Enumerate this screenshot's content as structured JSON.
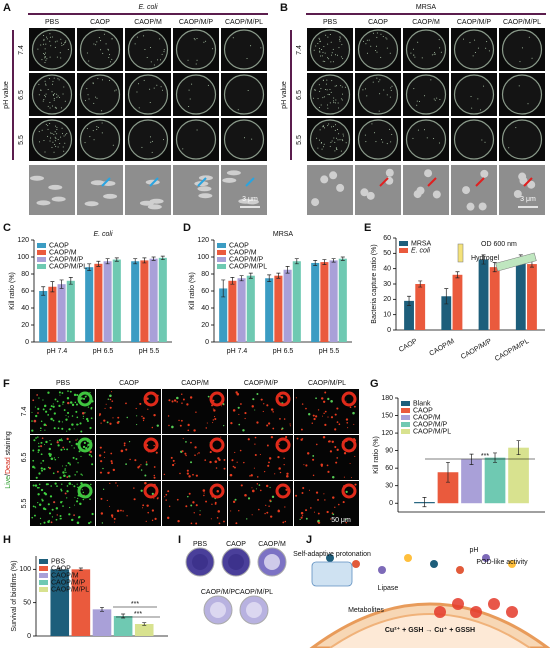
{
  "panel_labels": [
    "A",
    "B",
    "C",
    "D",
    "E",
    "F",
    "G",
    "H",
    "I",
    "J"
  ],
  "panel_a": {
    "title": "E. coli",
    "columns": [
      "PBS",
      "CAOP",
      "CAOP/M",
      "CAOP/M/P",
      "CAOP/M/PL"
    ],
    "rows": [
      "7.4",
      "6.5",
      "5.5"
    ],
    "row_axis": "pH value",
    "scale_bar": "3 μm"
  },
  "panel_b": {
    "title": "MRSA",
    "columns": [
      "PBS",
      "CAOP",
      "CAOP/M",
      "CAOP/M/P",
      "CAOP/M/PL"
    ],
    "rows": [
      "7.4",
      "6.5",
      "5.5"
    ],
    "row_axis": "pH value",
    "scale_bar": "3 μm"
  },
  "chart_data": [
    {
      "type": "bar",
      "title": "E. coli",
      "y_label": "Kill ratio (%)",
      "categories": [
        "pH 7.4",
        "pH 6.5",
        "pH 5.5"
      ],
      "ylim": [
        0,
        120
      ],
      "yticks": [
        0,
        20,
        40,
        60,
        80,
        100,
        120
      ],
      "legend": "upper left",
      "series": [
        {
          "name": "CAOP",
          "color": "#3b9cc3",
          "values": [
            60,
            88,
            95
          ],
          "errors": [
            5,
            4,
            3
          ]
        },
        {
          "name": "CAOP/M",
          "color": "#ea5a3d",
          "values": [
            65,
            92,
            96
          ],
          "errors": [
            6,
            3,
            3
          ]
        },
        {
          "name": "CAOP/M/P",
          "color": "#a9a0d8",
          "values": [
            68,
            95,
            98
          ],
          "errors": [
            5,
            3,
            2
          ]
        },
        {
          "name": "CAOP/M/PL",
          "color": "#6fc9b2",
          "values": [
            72,
            97,
            99
          ],
          "errors": [
            4,
            2,
            2
          ]
        }
      ]
    },
    {
      "type": "bar",
      "title": "MRSA",
      "y_label": "Kill ratio (%)",
      "categories": [
        "pH 7.4",
        "pH 6.5",
        "pH 5.5"
      ],
      "ylim": [
        0,
        120
      ],
      "yticks": [
        0,
        20,
        40,
        60,
        80,
        100,
        120
      ],
      "legend": "upper left",
      "series": [
        {
          "name": "CAOP",
          "color": "#3b9cc3",
          "values": [
            63,
            75,
            93
          ],
          "errors": [
            10,
            4,
            3
          ]
        },
        {
          "name": "CAOP/M",
          "color": "#ea5a3d",
          "values": [
            72,
            78,
            94
          ],
          "errors": [
            4,
            3,
            3
          ]
        },
        {
          "name": "CAOP/M/P",
          "color": "#a9a0d8",
          "values": [
            75,
            85,
            96
          ],
          "errors": [
            3,
            4,
            2
          ]
        },
        {
          "name": "CAOP/M/PL",
          "color": "#6fc9b2",
          "values": [
            78,
            95,
            98
          ],
          "errors": [
            3,
            3,
            2
          ]
        }
      ]
    },
    {
      "type": "bar",
      "y_label": "Bacteria capture ratio (%)",
      "categories": [
        "CAOP",
        "CAOP/M",
        "CAOP/M/P",
        "CAOP/M/PL"
      ],
      "ylim": [
        0,
        60
      ],
      "yticks": [
        0,
        10,
        20,
        30,
        40,
        50,
        60
      ],
      "legend": "upper left",
      "inset_labels": [
        "OD 600 nm",
        "Hydrogel"
      ],
      "series": [
        {
          "name": "MRSA",
          "color": "#1d5e7b",
          "values": [
            19,
            22,
            46,
            47
          ],
          "errors": [
            3,
            5,
            3,
            2
          ]
        },
        {
          "name": "E. coli",
          "color": "#ea5a3d",
          "values": [
            30,
            36,
            41,
            43
          ],
          "errors": [
            2,
            2,
            3,
            2
          ]
        }
      ]
    },
    {
      "type": "bar",
      "y_label": "Kill ratio (%)",
      "categories": [
        null
      ],
      "ylim": [
        -15,
        180
      ],
      "yticks": [
        0,
        30,
        60,
        90,
        120,
        150,
        180
      ],
      "legend": "upper left",
      "annotations": [
        "***"
      ],
      "series": [
        {
          "name": "Blank",
          "color": "#1d5e7b",
          "values": [
            2
          ],
          "errors": [
            8
          ]
        },
        {
          "name": "CAOP",
          "color": "#ea5a3d",
          "values": [
            53
          ],
          "errors": [
            17
          ]
        },
        {
          "name": "CAOP/M",
          "color": "#a9a0d8",
          "values": [
            75
          ],
          "errors": [
            9
          ]
        },
        {
          "name": "CAOP/M/P",
          "color": "#6fc9b2",
          "values": [
            78
          ],
          "errors": [
            8
          ]
        },
        {
          "name": "CAOP/M/PL",
          "color": "#d8e28f",
          "values": [
            95
          ],
          "errors": [
            12
          ]
        }
      ]
    },
    {
      "type": "bar",
      "y_label": "Survival of biofilms (%)",
      "categories": [
        null
      ],
      "ylim": [
        0,
        120
      ],
      "yticks": [
        0,
        50,
        100
      ],
      "legend": "upper left",
      "annotations": [
        "***",
        "***"
      ],
      "series": [
        {
          "name": "PBS",
          "color": "#1d5e7b",
          "values": [
            100
          ],
          "errors": [
            2
          ]
        },
        {
          "name": "CAOP",
          "color": "#ea5a3d",
          "values": [
            100
          ],
          "errors": [
            2
          ]
        },
        {
          "name": "CAOP/M",
          "color": "#a9a0d8",
          "values": [
            40
          ],
          "errors": [
            3
          ]
        },
        {
          "name": "CAOP/M/P",
          "color": "#6fc9b2",
          "values": [
            30
          ],
          "errors": [
            3
          ]
        },
        {
          "name": "CAOP/M/PL",
          "color": "#d8e28f",
          "values": [
            18
          ],
          "errors": [
            2
          ]
        }
      ]
    }
  ],
  "panel_f": {
    "columns": [
      "PBS",
      "CAOP",
      "CAOP/M",
      "CAOP/M/P",
      "CAOP/M/PL"
    ],
    "rows": [
      "7.4",
      "6.5",
      "5.5"
    ],
    "stain_live": "Live",
    "stain_sep": "/",
    "stain_dead": "Dead",
    "stain_rest": " staining",
    "scale_bar": "50 μm"
  },
  "panel_i": {
    "wells": [
      "PBS",
      "CAOP",
      "CAOP/M",
      "CAOP/M/P",
      "CAOP/M/PL"
    ]
  },
  "panel_j": {
    "labels": [
      "Self-adaptive protonation",
      "Lipase",
      "Metabolites",
      "pH",
      "POD-like activity",
      "Cu²⁺ + GSH → Cu⁺ + GSSH"
    ]
  }
}
